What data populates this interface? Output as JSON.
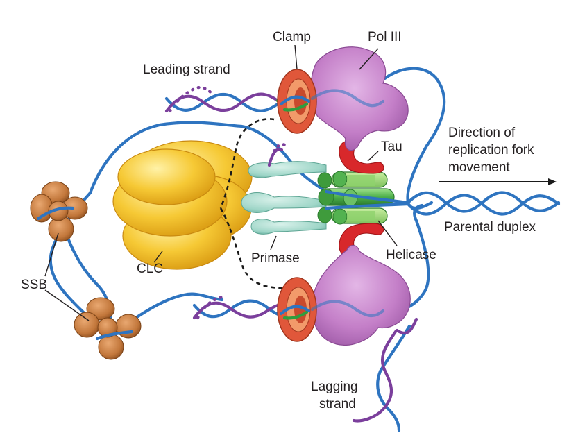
{
  "labels": {
    "clamp": "Clamp",
    "pol_iii": "Pol III",
    "leading_strand": "Leading strand",
    "direction_line1": "Direction of",
    "direction_line2": "replication fork",
    "direction_line3": "movement",
    "tau": "Tau",
    "parental_duplex": "Parental duplex",
    "helicase": "Helicase",
    "primase": "Primase",
    "clc": "CLC",
    "ssb": "SSB",
    "lagging_line1": "Lagging",
    "lagging_line2": "strand"
  },
  "colors": {
    "dna_template": "#2e74c0",
    "dna_new": "#7b3f9c",
    "rna_primer": "#2e9e3e",
    "clamp": "#e0573a",
    "pol_iii": "#c47fc8",
    "helicase": "#4caf4a",
    "tau": "#d8282b",
    "primase": "#9fd6c8",
    "clc": "#f4c430",
    "ssb": "#c2773b"
  }
}
